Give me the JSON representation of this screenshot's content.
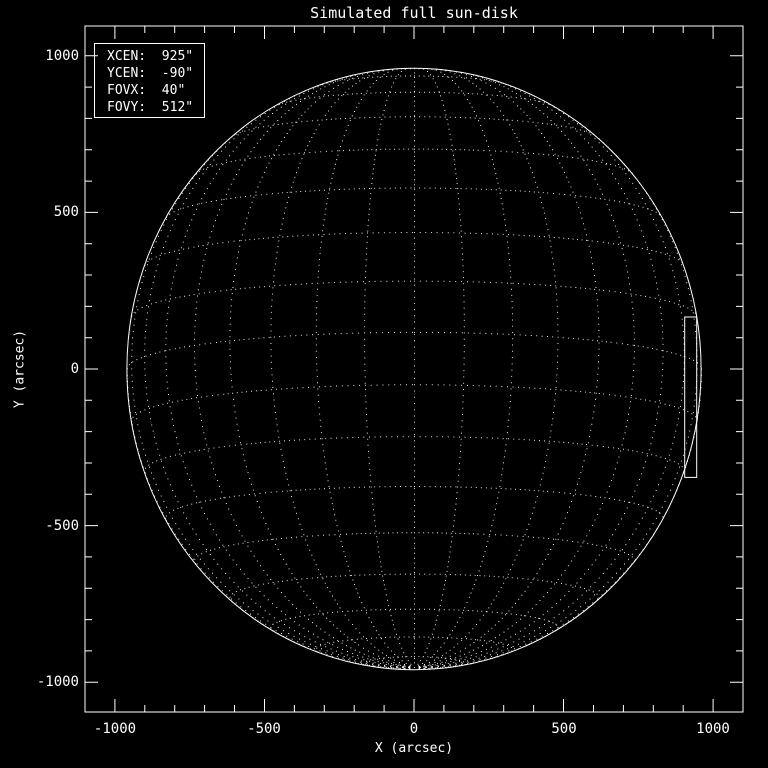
{
  "window": {
    "background": "#000000",
    "foreground": "#ffffff"
  },
  "chart_data": {
    "type": "line",
    "title": "Simulated full sun-disk",
    "xlabel": "X (arcsec)",
    "ylabel": "Y (arcsec)",
    "xlim": [
      -1100,
      1100
    ],
    "ylim": [
      -1095,
      1095
    ],
    "grid": false,
    "legend_position": "upper-left",
    "x_ticks": {
      "values": [
        -1000,
        -500,
        0,
        500,
        1000
      ],
      "labels": [
        "-1000",
        "-500",
        "0",
        "500",
        "1000"
      ]
    },
    "y_ticks": {
      "values": [
        1000,
        500,
        0,
        -500,
        -1000
      ],
      "labels": [
        "1000",
        "500",
        "0",
        "-500",
        "-1000"
      ]
    },
    "minor_tick_step": 100,
    "solar_disk": {
      "radius_arcsec": 960,
      "b0_tilt_deg": -7,
      "grid_step_deg": 10,
      "lat_max_deg": 80,
      "grid_line_style": "dotted",
      "limb_style": "solid"
    },
    "fov_box": {
      "xcen_arcsec": 925,
      "ycen_arcsec": -90,
      "fovx_arcsec": 40,
      "fovy_arcsec": 512
    }
  },
  "legend": {
    "lines": [
      "XCEN:  925\"",
      "YCEN:  -90\"",
      "FOVX:  40\"",
      "FOVY:  512\""
    ]
  }
}
